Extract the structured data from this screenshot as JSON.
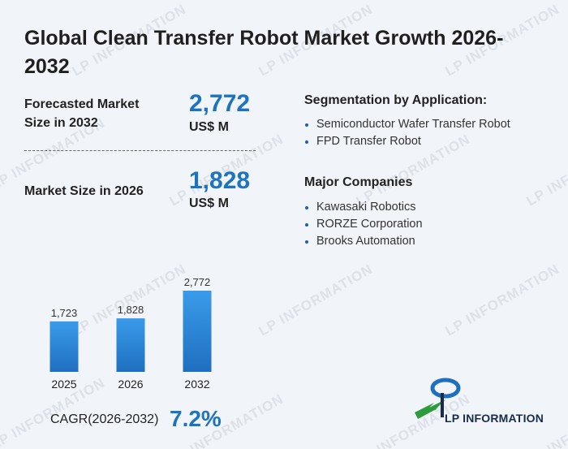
{
  "title": "Global Clean Transfer Robot Market Growth 2026-2032",
  "kpis": {
    "forecast": {
      "label_line1": "Forecasted Market",
      "label_line2": "Size in 2032",
      "value": "2,772",
      "unit": "US$ M"
    },
    "current": {
      "label": "Market Size in 2026",
      "value": "1,828",
      "unit": "US$ M"
    }
  },
  "segmentation": {
    "heading": "Segmentation by Application:",
    "items": [
      "Semiconductor Wafer Transfer Robot",
      "FPD Transfer Robot"
    ]
  },
  "companies": {
    "heading": "Major Companies",
    "items": [
      "Kawasaki Robotics",
      "RORZE Corporation",
      "Brooks Automation"
    ]
  },
  "cagr": {
    "label": "CAGR(2026-2032)",
    "value": "7.2%"
  },
  "logo": {
    "text": "LP INFORMATION"
  },
  "watermark_text": "LP INFORMATION",
  "colors": {
    "accent": "#1e73be",
    "bar_top": "#3a9bea",
    "bar_bottom": "#1f6fc0"
  },
  "chart_data": {
    "type": "bar",
    "categories": [
      "2025",
      "2026",
      "2032"
    ],
    "values": [
      1723,
      1828,
      2772
    ],
    "value_labels": [
      "1,723",
      "1,828",
      "2,772"
    ],
    "title": "",
    "xlabel": "",
    "ylabel": "",
    "grid": false
  }
}
